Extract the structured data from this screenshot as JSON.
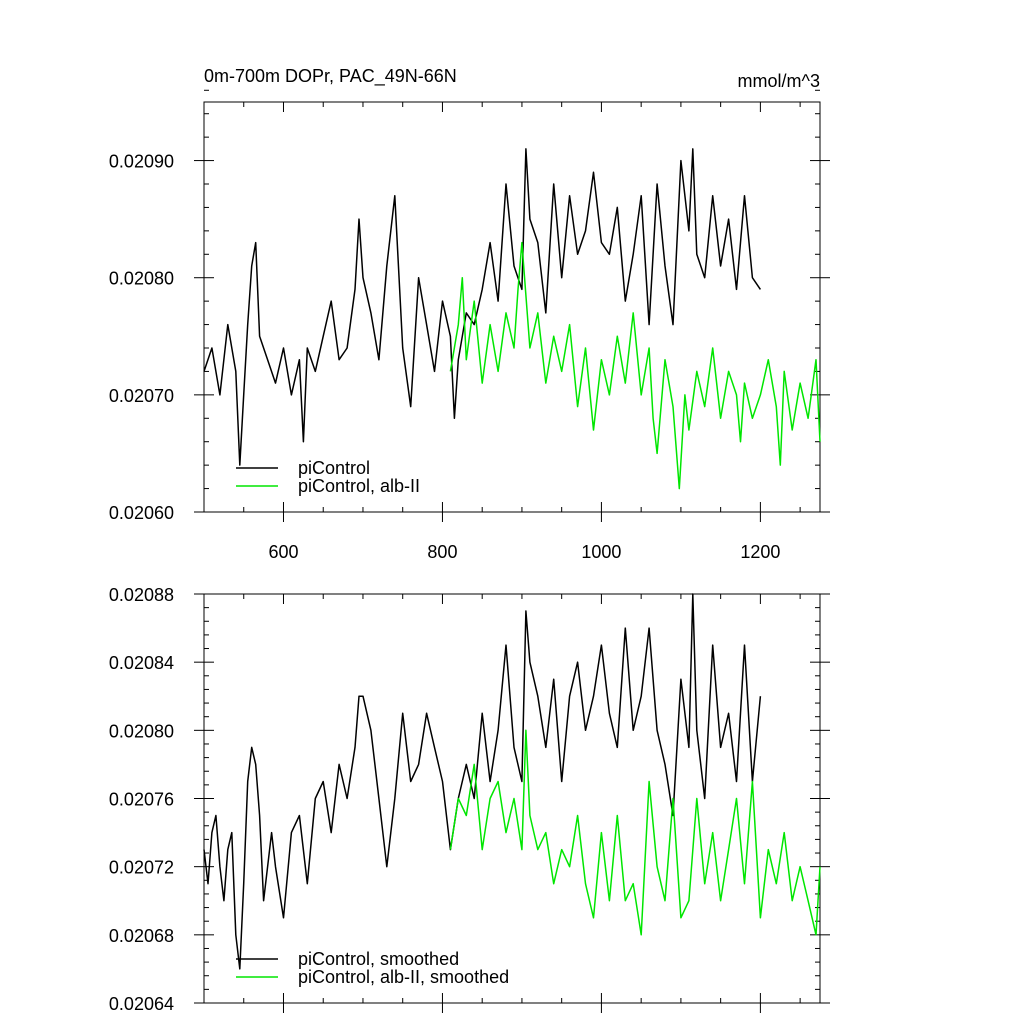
{
  "figure": {
    "title": "0m-700m DOPr, PAC_49N-66N",
    "units": "mmol/m^3"
  },
  "colors": {
    "pi_control": "#000000",
    "alb_ii": "#00e600",
    "axis": "#000000",
    "background": "#ffffff"
  },
  "chart_data": [
    {
      "type": "line",
      "xlim": [
        500,
        1275
      ],
      "ylim": [
        0.0206,
        0.02095
      ],
      "x_ticks": [
        600,
        800,
        1000,
        1200
      ],
      "x_tick_labels": [
        "600",
        "800",
        "1000",
        "1200"
      ],
      "y_ticks": [
        0.0206,
        0.0207,
        0.0208,
        0.0209
      ],
      "y_tick_labels": [
        "0.02060",
        "0.02070",
        "0.02080",
        "0.02090"
      ],
      "legend_position": "bottom-left",
      "series": [
        {
          "name": "piControl",
          "color": "#000000",
          "x": [
            500,
            510,
            520,
            530,
            540,
            545,
            550,
            555,
            560,
            565,
            570,
            580,
            590,
            600,
            610,
            620,
            625,
            630,
            640,
            650,
            660,
            670,
            680,
            690,
            695,
            700,
            710,
            720,
            730,
            740,
            750,
            760,
            770,
            780,
            790,
            800,
            810,
            815,
            820,
            830,
            840,
            850,
            860,
            870,
            880,
            890,
            900,
            905,
            910,
            920,
            930,
            940,
            950,
            960,
            970,
            980,
            990,
            1000,
            1010,
            1020,
            1030,
            1040,
            1050,
            1060,
            1070,
            1080,
            1090,
            1100,
            1110,
            1115,
            1120,
            1130,
            1140,
            1150,
            1160,
            1170,
            1180,
            1190,
            1200
          ],
          "y": [
            0.02072,
            0.02074,
            0.0207,
            0.02076,
            0.02072,
            0.02064,
            0.0207,
            0.02076,
            0.02081,
            0.02083,
            0.02075,
            0.02073,
            0.02071,
            0.02074,
            0.0207,
            0.02073,
            0.02066,
            0.02074,
            0.02072,
            0.02075,
            0.02078,
            0.02073,
            0.02074,
            0.02079,
            0.02085,
            0.0208,
            0.02077,
            0.02073,
            0.02081,
            0.02087,
            0.02074,
            0.02069,
            0.0208,
            0.02076,
            0.02072,
            0.02078,
            0.02075,
            0.02068,
            0.02073,
            0.02077,
            0.02076,
            0.02079,
            0.02083,
            0.02078,
            0.02088,
            0.02081,
            0.02079,
            0.02091,
            0.02085,
            0.02083,
            0.02077,
            0.02088,
            0.0208,
            0.02087,
            0.02082,
            0.02084,
            0.02089,
            0.02083,
            0.02082,
            0.02086,
            0.02078,
            0.02082,
            0.02087,
            0.02076,
            0.02088,
            0.02081,
            0.02076,
            0.0209,
            0.02084,
            0.02091,
            0.02082,
            0.0208,
            0.02087,
            0.02081,
            0.02085,
            0.02079,
            0.02087,
            0.0208,
            0.02079
          ]
        },
        {
          "name": "piControl, alb-II",
          "color": "#00e600",
          "x": [
            810,
            820,
            825,
            830,
            840,
            850,
            860,
            870,
            880,
            890,
            895,
            900,
            910,
            920,
            930,
            940,
            950,
            960,
            970,
            980,
            990,
            1000,
            1010,
            1020,
            1030,
            1040,
            1050,
            1060,
            1065,
            1070,
            1080,
            1090,
            1098,
            1105,
            1110,
            1120,
            1130,
            1140,
            1150,
            1160,
            1170,
            1175,
            1180,
            1190,
            1200,
            1210,
            1220,
            1225,
            1230,
            1240,
            1250,
            1260,
            1270,
            1275
          ],
          "y": [
            0.02072,
            0.02076,
            0.0208,
            0.02073,
            0.02078,
            0.02071,
            0.02076,
            0.02072,
            0.02077,
            0.02074,
            0.02079,
            0.02083,
            0.02074,
            0.02077,
            0.02071,
            0.02075,
            0.02072,
            0.02076,
            0.02069,
            0.02074,
            0.02067,
            0.02073,
            0.0207,
            0.02075,
            0.02071,
            0.02077,
            0.0207,
            0.02074,
            0.02068,
            0.02065,
            0.02073,
            0.02069,
            0.02062,
            0.0207,
            0.02067,
            0.02072,
            0.02069,
            0.02074,
            0.02068,
            0.02072,
            0.0207,
            0.02066,
            0.02071,
            0.02068,
            0.0207,
            0.02073,
            0.02069,
            0.02064,
            0.02072,
            0.02067,
            0.02071,
            0.02068,
            0.02073,
            0.02066
          ]
        }
      ]
    },
    {
      "type": "line",
      "xlim": [
        500,
        1275
      ],
      "ylim": [
        0.02064,
        0.02088
      ],
      "x_ticks": [
        600,
        800,
        1000,
        1200
      ],
      "x_tick_labels": [],
      "y_ticks": [
        0.02064,
        0.02068,
        0.02072,
        0.02076,
        0.0208,
        0.02084,
        0.02088
      ],
      "y_tick_labels": [
        "0.02064",
        "0.02068",
        "0.02072",
        "0.02076",
        "0.02080",
        "0.02084",
        "0.02088"
      ],
      "legend_position": "bottom-left",
      "series": [
        {
          "name": "piControl, smoothed",
          "color": "#000000",
          "x": [
            500,
            505,
            510,
            515,
            520,
            525,
            530,
            535,
            540,
            545,
            550,
            555,
            560,
            565,
            570,
            575,
            580,
            585,
            590,
            600,
            610,
            620,
            630,
            640,
            650,
            660,
            670,
            680,
            690,
            695,
            700,
            710,
            720,
            730,
            740,
            750,
            760,
            770,
            780,
            790,
            800,
            810,
            820,
            830,
            840,
            850,
            860,
            870,
            880,
            890,
            900,
            905,
            910,
            920,
            930,
            940,
            950,
            960,
            970,
            980,
            990,
            1000,
            1010,
            1020,
            1030,
            1040,
            1050,
            1060,
            1070,
            1080,
            1090,
            1100,
            1110,
            1115,
            1120,
            1130,
            1140,
            1150,
            1160,
            1170,
            1180,
            1190,
            1200
          ],
          "y": [
            0.02073,
            0.02071,
            0.02074,
            0.02075,
            0.02072,
            0.0207,
            0.02073,
            0.02074,
            0.02068,
            0.02066,
            0.02071,
            0.02077,
            0.02079,
            0.02078,
            0.02075,
            0.0207,
            0.02072,
            0.02074,
            0.02072,
            0.02069,
            0.02074,
            0.02075,
            0.02071,
            0.02076,
            0.02077,
            0.02074,
            0.02078,
            0.02076,
            0.02079,
            0.02082,
            0.02082,
            0.0208,
            0.02076,
            0.02072,
            0.02076,
            0.02081,
            0.02077,
            0.02078,
            0.02081,
            0.02079,
            0.02077,
            0.02073,
            0.02076,
            0.02078,
            0.02076,
            0.02081,
            0.02077,
            0.0208,
            0.02085,
            0.02079,
            0.02077,
            0.02087,
            0.02084,
            0.02082,
            0.02079,
            0.02083,
            0.02077,
            0.02082,
            0.02084,
            0.0208,
            0.02082,
            0.02085,
            0.02081,
            0.02079,
            0.02086,
            0.0208,
            0.02082,
            0.02086,
            0.0208,
            0.02078,
            0.02075,
            0.02083,
            0.02079,
            0.02088,
            0.0208,
            0.02076,
            0.02085,
            0.02079,
            0.02081,
            0.02077,
            0.02085,
            0.02077,
            0.02082
          ]
        },
        {
          "name": "piControl, alb-II, smoothed",
          "color": "#00e600",
          "x": [
            810,
            820,
            830,
            840,
            850,
            860,
            870,
            880,
            890,
            900,
            905,
            910,
            920,
            930,
            940,
            950,
            960,
            970,
            980,
            990,
            1000,
            1010,
            1020,
            1030,
            1040,
            1050,
            1060,
            1070,
            1080,
            1090,
            1100,
            1110,
            1120,
            1130,
            1140,
            1150,
            1160,
            1170,
            1180,
            1190,
            1200,
            1210,
            1220,
            1230,
            1240,
            1250,
            1260,
            1270,
            1275
          ],
          "y": [
            0.02073,
            0.02076,
            0.02075,
            0.02078,
            0.02073,
            0.02076,
            0.02077,
            0.02074,
            0.02076,
            0.02073,
            0.0208,
            0.02075,
            0.02073,
            0.02074,
            0.02071,
            0.02073,
            0.02072,
            0.02075,
            0.02071,
            0.02069,
            0.02074,
            0.0207,
            0.02075,
            0.0207,
            0.02071,
            0.02068,
            0.02077,
            0.02072,
            0.0207,
            0.02076,
            0.02069,
            0.0207,
            0.02076,
            0.02071,
            0.02074,
            0.0207,
            0.02073,
            0.02076,
            0.02071,
            0.02077,
            0.02069,
            0.02073,
            0.02071,
            0.02074,
            0.0207,
            0.02072,
            0.0207,
            0.02068,
            0.02072
          ]
        }
      ]
    }
  ]
}
